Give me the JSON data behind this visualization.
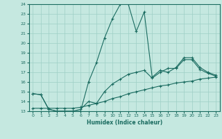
{
  "title": "",
  "xlabel": "Humidex (Indice chaleur)",
  "background_color": "#c5e8e0",
  "grid_color": "#9ecfc5",
  "line_color": "#1a6b60",
  "xlim": [
    -0.5,
    23.5
  ],
  "ylim": [
    13,
    24
  ],
  "yticks": [
    13,
    14,
    15,
    16,
    17,
    18,
    19,
    20,
    21,
    22,
    23,
    24
  ],
  "xticks": [
    0,
    1,
    2,
    3,
    4,
    5,
    6,
    7,
    8,
    9,
    10,
    11,
    12,
    13,
    14,
    15,
    16,
    17,
    18,
    19,
    20,
    21,
    22,
    23
  ],
  "line1_x": [
    0,
    1,
    2,
    3,
    4,
    5,
    6,
    7,
    8,
    9,
    10,
    11,
    12,
    13,
    14,
    15,
    16,
    17,
    18,
    19,
    20,
    21,
    22,
    23
  ],
  "line1_y": [
    14.8,
    14.7,
    13.2,
    13.0,
    13.0,
    13.0,
    13.0,
    16.0,
    18.0,
    20.5,
    22.5,
    24.0,
    24.0,
    21.2,
    23.2,
    16.5,
    17.2,
    17.0,
    17.5,
    18.5,
    18.5,
    17.5,
    17.0,
    16.7
  ],
  "line2_x": [
    0,
    1,
    2,
    3,
    4,
    5,
    6,
    7,
    8,
    9,
    10,
    11,
    12,
    13,
    14,
    15,
    16,
    17,
    18,
    19,
    20,
    21,
    22,
    23
  ],
  "line2_y": [
    13.3,
    13.3,
    13.3,
    13.3,
    13.3,
    13.3,
    13.4,
    13.6,
    13.8,
    14.0,
    14.3,
    14.5,
    14.8,
    15.0,
    15.2,
    15.4,
    15.6,
    15.7,
    15.9,
    16.0,
    16.1,
    16.3,
    16.4,
    16.5
  ],
  "line3_x": [
    0,
    1,
    2,
    3,
    4,
    5,
    6,
    7,
    8,
    9,
    10,
    11,
    12,
    13,
    14,
    15,
    16,
    17,
    18,
    19,
    20,
    21,
    22,
    23
  ],
  "line3_y": [
    14.8,
    14.7,
    13.2,
    13.0,
    13.0,
    13.0,
    13.2,
    14.0,
    13.8,
    15.0,
    15.8,
    16.3,
    16.8,
    17.0,
    17.2,
    16.4,
    17.0,
    17.4,
    17.4,
    18.3,
    18.3,
    17.3,
    16.9,
    16.6
  ]
}
